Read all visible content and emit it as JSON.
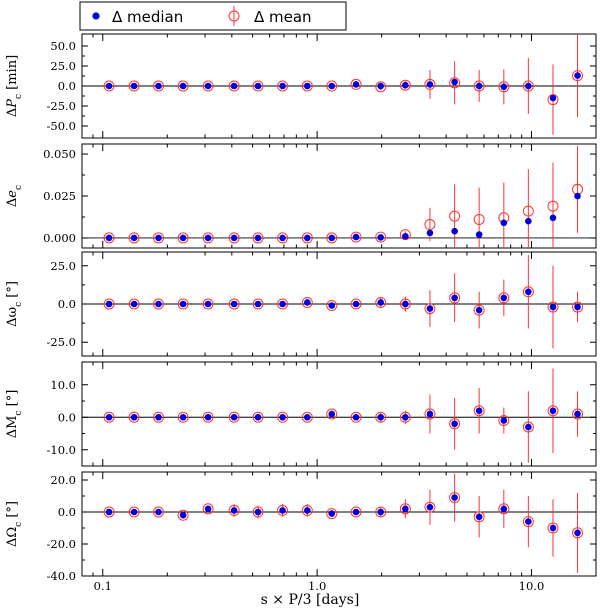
{
  "chart_data": {
    "type": "scatter",
    "xscale": "log",
    "xlim": [
      0.08,
      20
    ],
    "x_ticks": [
      0.1,
      1.0,
      10.0
    ],
    "x_tick_labels": [
      "0.1",
      "1.0",
      "10.0"
    ],
    "xlabel": "s × P/3 [days]",
    "legend": {
      "position": "top-left",
      "entries": [
        {
          "label": "Δ median",
          "marker": "filled-circle",
          "color": "#0000dd"
        },
        {
          "label": "Δ mean",
          "marker": "open-circle-errorbar",
          "color": "#ff3333"
        }
      ]
    },
    "x": [
      0.107,
      0.14,
      0.182,
      0.237,
      0.31,
      0.41,
      0.53,
      0.69,
      0.9,
      1.17,
      1.52,
      1.98,
      2.58,
      3.36,
      4.38,
      5.7,
      7.43,
      9.67,
      12.6,
      16.4
    ],
    "panels": [
      {
        "ylabel": "ΔP_c [min]",
        "ylim": [
          -65,
          65
        ],
        "y_ticks": [
          -50,
          -25,
          0,
          25,
          50
        ],
        "y_tick_labels": [
          "-50.0",
          "-25.0",
          "0.0",
          "25.0",
          "50.0"
        ],
        "median": [
          0,
          0,
          0,
          0,
          0,
          0,
          0,
          0,
          0,
          0,
          2,
          0,
          1,
          2,
          5,
          0,
          -1,
          0,
          -15,
          13
        ],
        "mean": [
          0,
          0,
          0,
          0,
          0,
          0,
          0,
          0,
          0,
          0,
          2,
          -1,
          1,
          2,
          4,
          0,
          -1,
          0,
          -17,
          13
        ],
        "err": [
          1,
          1,
          1,
          1,
          1,
          1,
          1,
          1,
          1,
          1,
          3,
          4,
          5,
          18,
          27,
          20,
          22,
          35,
          44,
          52
        ]
      },
      {
        "ylabel": "Δe_c",
        "ylim": [
          -0.006,
          0.056
        ],
        "y_ticks": [
          0.0,
          0.025,
          0.05
        ],
        "y_tick_labels": [
          "0.000",
          "0.025",
          "0.050"
        ],
        "median": [
          0,
          0,
          0,
          0,
          0,
          0,
          0,
          0,
          0,
          0,
          0.0005,
          0.0003,
          0.001,
          0.003,
          0.004,
          0.002,
          0.009,
          0.01,
          0.012,
          0.025
        ],
        "mean": [
          0,
          0,
          0,
          0,
          0,
          0,
          0,
          0,
          0,
          0,
          0.0005,
          0.0005,
          0.002,
          0.008,
          0.013,
          0.011,
          0.012,
          0.016,
          0.019,
          0.029
        ],
        "err": [
          0.0005,
          0.0005,
          0.0005,
          0.0005,
          0.0005,
          0.0005,
          0.0005,
          0.0005,
          0.0005,
          0.0005,
          0.001,
          0.001,
          0.002,
          0.01,
          0.019,
          0.019,
          0.021,
          0.025,
          0.026,
          0.026
        ]
      },
      {
        "ylabel": "Δω_c [°]",
        "ylim": [
          -34,
          34
        ],
        "y_ticks": [
          -25,
          0,
          25
        ],
        "y_tick_labels": [
          "-25.0",
          "0.0",
          "25.0"
        ],
        "median": [
          0,
          0,
          0,
          0,
          0,
          0,
          0,
          0,
          1,
          -1,
          0,
          1,
          0,
          -3,
          4,
          -4,
          4,
          8,
          -2,
          -2
        ],
        "mean": [
          0,
          0,
          0,
          0,
          0,
          0,
          0,
          0,
          1,
          -1,
          0,
          1,
          0,
          -3,
          4,
          -4,
          4,
          8,
          -2,
          -2
        ],
        "err": [
          0.5,
          0.5,
          0.5,
          0.5,
          0.5,
          0.5,
          0.5,
          0.5,
          1,
          2,
          2,
          3,
          5,
          12,
          16,
          12,
          12,
          24,
          27,
          10
        ]
      },
      {
        "ylabel": "ΔM_c [°]",
        "ylim": [
          -15,
          17
        ],
        "y_ticks": [
          -10,
          0,
          10
        ],
        "y_tick_labels": [
          "-10.0",
          "0.0",
          "10.0"
        ],
        "median": [
          0,
          0,
          0,
          0,
          0,
          0,
          0,
          0,
          0,
          1,
          0,
          0,
          0,
          1,
          -2,
          2,
          -1,
          -3,
          2,
          1
        ],
        "mean": [
          0,
          0,
          0,
          0,
          0,
          0,
          0,
          0,
          0,
          1,
          0,
          0,
          0,
          1,
          -2,
          2,
          -1,
          -3,
          2,
          1
        ],
        "err": [
          0.3,
          0.3,
          0.3,
          0.3,
          0.3,
          0.3,
          0.3,
          0.3,
          0.5,
          1,
          1,
          1.5,
          2,
          6,
          8,
          7,
          4,
          11,
          13,
          7
        ]
      },
      {
        "ylabel": "ΔΩ_c [°]",
        "ylim": [
          -40,
          25
        ],
        "y_ticks": [
          -40,
          -20,
          0,
          20
        ],
        "y_tick_labels": [
          "-40.0",
          "-20.0",
          "0.0",
          "20.0"
        ],
        "median": [
          0,
          0,
          0,
          -2,
          2,
          1,
          0,
          1,
          1,
          -1,
          0,
          0,
          2,
          3,
          9,
          -3,
          2,
          -6,
          -10,
          -13
        ],
        "mean": [
          0,
          0,
          0,
          -2,
          2,
          1,
          0,
          1,
          1,
          -1,
          0,
          0,
          2,
          3,
          9,
          -3,
          2,
          -6,
          -10,
          -13
        ],
        "err": [
          1,
          1,
          1,
          2,
          2,
          4,
          4,
          4,
          4,
          2,
          2,
          3,
          6,
          11,
          15,
          13,
          12,
          16,
          18,
          25
        ]
      }
    ]
  }
}
